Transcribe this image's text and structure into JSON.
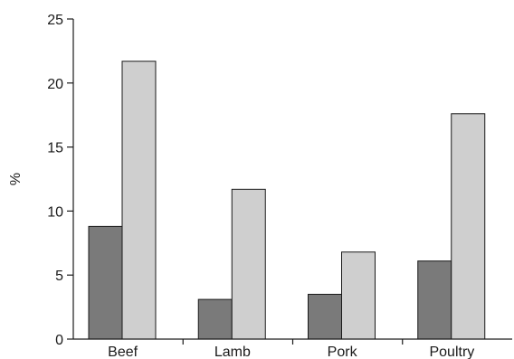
{
  "chart_data": {
    "type": "bar",
    "categories": [
      "Beef",
      "Lamb",
      "Pork",
      "Poultry"
    ],
    "series": [
      {
        "values": [
          8.8,
          3.1,
          3.5,
          6.1
        ],
        "color": "#7a7a7a"
      },
      {
        "values": [
          21.7,
          11.7,
          6.8,
          17.6
        ],
        "color": "#cfcfcf"
      }
    ],
    "ylabel": "%",
    "ylim": [
      0,
      25
    ],
    "yticks": [
      0,
      5,
      10,
      15,
      20,
      25
    ],
    "ytick_labels": [
      "0",
      "5",
      "10",
      "15",
      "20",
      "25"
    ],
    "grid": false,
    "legend": "none"
  }
}
